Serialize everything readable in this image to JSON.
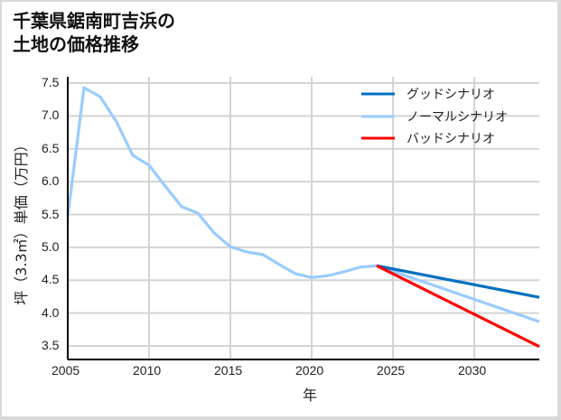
{
  "title_line1": "千葉県鋸南町吉浜の",
  "title_line2": "土地の価格推移",
  "chart_data": {
    "type": "line",
    "title": "千葉県鋸南町吉浜の土地の価格推移",
    "xlabel": "年",
    "ylabel": "坪（3.3㎡）単価（万円）",
    "xlim": [
      2005,
      2034
    ],
    "ylim": [
      3.3,
      7.6
    ],
    "x_ticks": [
      "2005",
      "2010",
      "2015",
      "2020",
      "2025",
      "2030"
    ],
    "y_ticks": [
      "3.5",
      "4.0",
      "4.5",
      "5.0",
      "5.5",
      "6.0",
      "6.5",
      "7.0",
      "7.5"
    ],
    "grid": true,
    "legend_position": "upper right",
    "series": [
      {
        "name": "グッドシナリオ",
        "color": "#0070C0",
        "x": [
          2024,
          2034
        ],
        "values": [
          4.72,
          4.24
        ]
      },
      {
        "name": "ノーマルシナリオ",
        "color": "#99CCFF",
        "x": [
          2005,
          2006,
          2007,
          2008,
          2009,
          2010,
          2011,
          2012,
          2013,
          2014,
          2015,
          2016,
          2017,
          2018,
          2019,
          2020,
          2021,
          2022,
          2023,
          2024,
          2034
        ],
        "values": [
          5.47,
          7.43,
          7.29,
          6.91,
          6.4,
          6.25,
          5.93,
          5.62,
          5.52,
          5.22,
          5.01,
          4.93,
          4.89,
          4.74,
          4.6,
          4.54,
          4.57,
          4.63,
          4.7,
          4.72,
          3.87
        ]
      },
      {
        "name": "バッドシナリオ",
        "color": "#FF0000",
        "x": [
          2024,
          2034
        ],
        "values": [
          4.72,
          3.49
        ]
      }
    ]
  }
}
